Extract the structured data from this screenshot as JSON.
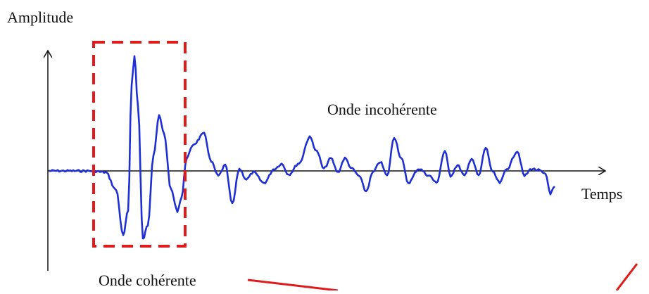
{
  "diagram": {
    "y_axis_label": "Amplitude",
    "x_axis_label": "Temps",
    "incoherent_label": "Onde incohérente",
    "coherent_label": "Onde cohérente"
  }
}
